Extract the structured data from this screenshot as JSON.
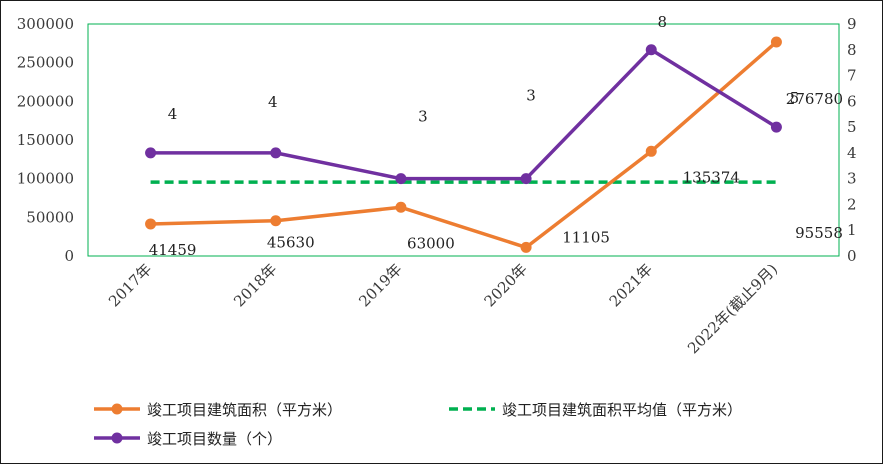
{
  "chart_data": {
    "type": "line",
    "categories": [
      "2017年",
      "2018年",
      "2019年",
      "2020年",
      "2021年",
      "2022年(截止9月)"
    ],
    "series": [
      {
        "name": "竣工项目建筑面积（平方米）",
        "axis": "left",
        "color": "#ed7d31",
        "values": [
          41459,
          45630,
          63000,
          11105,
          135374,
          276780
        ],
        "labels": [
          "41459",
          "45630",
          "63000",
          "11105",
          "135374",
          "276780"
        ]
      },
      {
        "name": "竣工项目建筑面积平均值（平方米）",
        "axis": "left",
        "color": "#00b050",
        "dashed": true,
        "values": [
          95558,
          95558,
          95558,
          95558,
          95558,
          95558
        ],
        "labels": [
          "95558"
        ]
      },
      {
        "name": "竣工项目数量（个）",
        "axis": "right",
        "color": "#7030a0",
        "values": [
          4,
          4,
          3,
          3,
          8,
          5
        ],
        "labels": [
          "4",
          "4",
          "3",
          "3",
          "8",
          "5"
        ]
      }
    ],
    "y_left": {
      "ylim": [
        0,
        300000
      ],
      "ticks": [
        "0",
        "50000",
        "100000",
        "150000",
        "200000",
        "250000",
        "300000"
      ]
    },
    "y_right": {
      "ylim": [
        0,
        9
      ],
      "ticks": [
        "0",
        "1",
        "2",
        "3",
        "4",
        "5",
        "6",
        "7",
        "8",
        "9"
      ]
    },
    "plot_border_color": "#00b050",
    "grid": false,
    "legend_position": "bottom",
    "title": "",
    "xlabel": "",
    "ylabel": ""
  }
}
